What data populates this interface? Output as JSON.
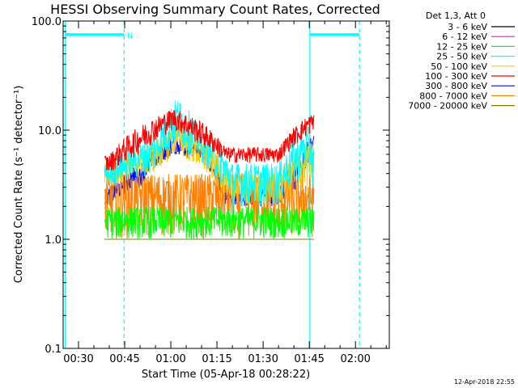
{
  "chart_data": {
    "type": "line",
    "title": "HESSI Observing Summary Count Rates, Corrected",
    "xlabel": "Start Time (05-Apr-18 00:28:22)",
    "ylabel": "Corrected Count Rate (s⁻¹ detector⁻¹)",
    "y_scale": "log",
    "ylim": [
      0.1,
      100.0
    ],
    "xlim_minutes": [
      25,
      131
    ],
    "x_ticks": [
      {
        "min": 30,
        "label": "00:30"
      },
      {
        "min": 45,
        "label": "00:45"
      },
      {
        "min": 60,
        "label": "01:00"
      },
      {
        "min": 75,
        "label": "01:15"
      },
      {
        "min": 90,
        "label": "01:30"
      },
      {
        "min": 105,
        "label": "01:45"
      },
      {
        "min": 120,
        "label": "02:00"
      }
    ],
    "y_ticks": [
      {
        "value": 0.1,
        "label": "0.1"
      },
      {
        "value": 1.0,
        "label": "1.0"
      },
      {
        "value": 10.0,
        "label": "10.0"
      },
      {
        "value": 100.0,
        "label": "100.0"
      }
    ],
    "legend_title": "Det 1,3, Att 0",
    "legend_position": "outside-right",
    "series": [
      {
        "name": "3 - 6 keV",
        "color": "#000000",
        "envelope": [
          [
            60,
            1.0,
            1.0
          ]
        ]
      },
      {
        "name": "6 - 12 keV",
        "color": "#ff00ff",
        "envelope": [
          [
            60,
            1.0,
            1.0
          ]
        ]
      },
      {
        "name": "12 - 25 keV",
        "color": "#00ff00",
        "envelope": [
          [
            40,
            1.0,
            2.0
          ],
          [
            80,
            1.0,
            2.0
          ],
          [
            106,
            1.0,
            2.0
          ]
        ]
      },
      {
        "name": "25 - 50 keV",
        "color": "#00ffff",
        "envelope": [
          [
            40,
            3.0,
            5.0
          ],
          [
            55,
            4.0,
            9.0
          ],
          [
            62,
            7.0,
            20.0
          ],
          [
            70,
            5.0,
            10.0
          ],
          [
            80,
            2.0,
            5.0
          ],
          [
            95,
            2.0,
            5.0
          ],
          [
            105,
            4.0,
            11.0
          ],
          [
            106,
            3.0,
            8.0
          ]
        ]
      },
      {
        "name": "50 - 100 keV",
        "color": "#ffcc00",
        "envelope": [
          [
            40,
            3.0,
            5.0
          ],
          [
            55,
            4.0,
            8.0
          ],
          [
            62,
            6.0,
            12.0
          ],
          [
            70,
            4.0,
            8.0
          ],
          [
            80,
            2.0,
            4.0
          ],
          [
            95,
            2.0,
            4.0
          ],
          [
            106,
            3.0,
            8.0
          ]
        ]
      },
      {
        "name": "100 - 300 keV",
        "color": "#ff0000",
        "envelope": [
          [
            40,
            4.0,
            6.0
          ],
          [
            50,
            6.0,
            11.0
          ],
          [
            61,
            10.0,
            16.0
          ],
          [
            70,
            7.0,
            12.0
          ],
          [
            78,
            5.0,
            7.0
          ],
          [
            95,
            5.0,
            7.0
          ],
          [
            105,
            9.0,
            14.0
          ],
          [
            106,
            10.0,
            14.0
          ]
        ]
      },
      {
        "name": "300 - 800 keV",
        "color": "#0000ff",
        "envelope": [
          [
            40,
            2.0,
            3.0
          ],
          [
            50,
            3.0,
            5.0
          ],
          [
            61,
            6.0,
            9.0
          ],
          [
            70,
            5.0,
            7.0
          ],
          [
            78,
            2.0,
            3.0
          ],
          [
            95,
            2.0,
            3.0
          ],
          [
            102,
            3.0,
            6.0
          ],
          [
            106,
            6.0,
            9.0
          ]
        ]
      },
      {
        "name": "800 - 7000 keV",
        "color": "#ff8000",
        "envelope": [
          [
            40,
            1.0,
            4.0
          ],
          [
            106,
            1.0,
            4.0
          ]
        ]
      },
      {
        "name": "7000 - 20000 keV",
        "color": "#808000",
        "envelope": [
          [
            60,
            1.0,
            1.0
          ]
        ]
      }
    ],
    "vertical_lines": [
      {
        "min": 25.7,
        "style": "solid",
        "color": "#00ffff"
      },
      {
        "min": 44.8,
        "style": "dashed",
        "color": "#00ffff"
      },
      {
        "min": 105.2,
        "style": "solid",
        "color": "#00ffff"
      },
      {
        "min": 121.3,
        "style": "dashed",
        "color": "#00ffff"
      }
    ],
    "horizontal_bars": [
      {
        "from": 25.7,
        "to": 44.8,
        "value": 75.0,
        "color": "#00ffff",
        "label": "N"
      },
      {
        "from": 105.2,
        "to": 121.3,
        "value": 75.0,
        "color": "#00ffff"
      }
    ],
    "data_window_minutes": [
      38.5,
      106.5
    ],
    "grid": false
  },
  "footer": {
    "timestamp": "12-Apr-2018 22:55"
  }
}
